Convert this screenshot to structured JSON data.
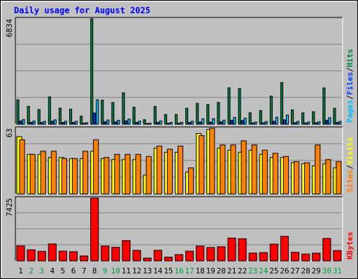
{
  "chart_data": {
    "type": "bar",
    "title": "Daily usage for August 2025",
    "categories": [
      "1",
      "2",
      "3",
      "4",
      "5",
      "6",
      "7",
      "8",
      "9",
      "10",
      "11",
      "12",
      "13",
      "14",
      "15",
      "16",
      "17",
      "18",
      "19",
      "20",
      "21",
      "22",
      "23",
      "24",
      "25",
      "26",
      "27",
      "28",
      "29",
      "30",
      "31"
    ],
    "weekend_days": [
      "2",
      "3",
      "9",
      "10",
      "16",
      "17",
      "23",
      "24",
      "30",
      "31"
    ],
    "panels": [
      {
        "name": "hits-files-pages",
        "ymax_label": "6834",
        "ymax": 6834,
        "legend": [
          {
            "text": "Pages",
            "color": "#00c0ff"
          },
          {
            "text": "Files",
            "color": "#0040ff"
          },
          {
            "text": "Hits",
            "color": "#008040"
          }
        ],
        "series": [
          {
            "name": "Hits",
            "color": "#008040",
            "values": [
              1580,
              1160,
              950,
              1770,
              1040,
              970,
              520,
              6834,
              1560,
              1410,
              2030,
              1100,
              290,
              1150,
              630,
              630,
              1030,
              1350,
              1280,
              1410,
              2360,
              2320,
              740,
              880,
              1820,
              2700,
              930,
              730,
              810,
              2350,
              1030
            ]
          },
          {
            "name": "Files",
            "color": "#0040ff",
            "values": [
              210,
              120,
              110,
              190,
              110,
              110,
              60,
              730,
              160,
              150,
              210,
              110,
              30,
              120,
              60,
              60,
              110,
              140,
              130,
              150,
              250,
              240,
              80,
              90,
              190,
              280,
              100,
              80,
              90,
              240,
              110
            ]
          },
          {
            "name": "Pages",
            "color": "#00c0ff",
            "values": [
              300,
              200,
              180,
              280,
              190,
              180,
              100,
              1580,
              270,
              250,
              330,
              200,
              60,
              210,
              120,
              120,
              190,
              350,
              360,
              260,
              440,
              390,
              140,
              170,
              450,
              590,
              180,
              140,
              160,
              420,
              180
            ]
          }
        ]
      },
      {
        "name": "visits-sites",
        "ymax_label": "63",
        "ymax": 63,
        "legend": [
          {
            "text": "Sites",
            "color": "#ff8000"
          },
          {
            "text": "Visits",
            "color": "#ffff00"
          }
        ],
        "series": [
          {
            "name": "Visits",
            "color": "#ffff00",
            "values": [
              55,
              38,
              38,
              35,
              35,
              34,
              34,
              41,
              34,
              33,
              33,
              33,
              18,
              44,
              40,
              40,
              21,
              58,
              62,
              44,
              42,
              40,
              42,
              38,
              35,
              35,
              30,
              29,
              27,
              29,
              25
            ]
          },
          {
            "name": "Sites",
            "color": "#ff8000",
            "values": [
              52,
              38,
              41,
              41,
              34,
              34,
              41,
              52,
              35,
              38,
              38,
              38,
              36,
              46,
              43,
              46,
              25,
              56,
              63,
              47,
              47,
              51,
              47,
              42,
              39,
              36,
              31,
              30,
              47,
              33,
              31
            ]
          }
        ]
      },
      {
        "name": "kbytes",
        "ymax_label": "7425",
        "ymax": 7425,
        "legend": [
          {
            "text": "KBytes",
            "color": "#ff0000"
          }
        ],
        "series": [
          {
            "name": "KBytes",
            "color": "#ff0000",
            "values": [
              1780,
              1310,
              1130,
              2000,
              1150,
              1080,
              580,
              7425,
              1750,
              1600,
              2400,
              1240,
              330,
              1250,
              440,
              740,
              1150,
              1750,
              1580,
              1670,
              2700,
              2620,
              920,
              980,
              1980,
              2900,
              1010,
              810,
              910,
              2650,
              1220
            ]
          }
        ]
      }
    ]
  },
  "colors": {
    "frame_bg": "#c0c0c0",
    "title": "#0000ff",
    "weekday_label": "#000000",
    "weekend_label": "#00a040",
    "legend_separator": "#000000"
  }
}
